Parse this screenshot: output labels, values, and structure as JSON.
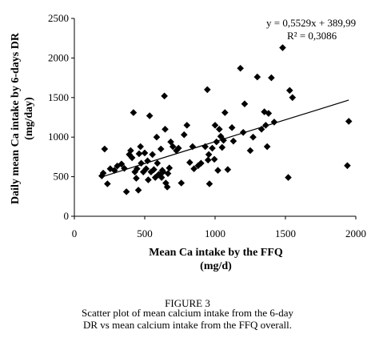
{
  "figure": {
    "label": "FIGURE 3",
    "caption_line1": "Scatter plot of mean calcium intake from the 6-day",
    "caption_line2": "DR vs mean calcium intake from the FFQ overall."
  },
  "chart_data": {
    "type": "scatter",
    "title": "",
    "xlabel": "Mean Ca intake by the FFQ (mg/d)",
    "xlabel_line1": "Mean Ca intake by the FFQ",
    "xlabel_line2": "(mg/d)",
    "ylabel_line1": "Daily mean Ca intake by 6-days DR",
    "ylabel_line2": "(mg/day)",
    "xlim": [
      0,
      2000
    ],
    "ylim": [
      0,
      2500
    ],
    "xticks": [
      0,
      500,
      1000,
      1500,
      2000
    ],
    "yticks": [
      0,
      500,
      1000,
      1500,
      2000,
      2500
    ],
    "grid": false,
    "marker": "diamond",
    "marker_color": "#000000",
    "trendline": {
      "slope": 0.5529,
      "intercept": 389.99,
      "x_range": [
        200,
        1950
      ],
      "equation": "y = 0,5529x + 389,99",
      "r_squared": "R² = 0,3086"
    },
    "points": [
      [
        195,
        510
      ],
      [
        205,
        545
      ],
      [
        215,
        850
      ],
      [
        235,
        410
      ],
      [
        255,
        600
      ],
      [
        285,
        580
      ],
      [
        305,
        635
      ],
      [
        335,
        660
      ],
      [
        355,
        605
      ],
      [
        370,
        310
      ],
      [
        390,
        780
      ],
      [
        400,
        830
      ],
      [
        410,
        740
      ],
      [
        420,
        1310
      ],
      [
        430,
        560
      ],
      [
        440,
        480
      ],
      [
        445,
        600
      ],
      [
        455,
        330
      ],
      [
        460,
        790
      ],
      [
        470,
        880
      ],
      [
        475,
        670
      ],
      [
        490,
        560
      ],
      [
        500,
        800
      ],
      [
        510,
        600
      ],
      [
        520,
        700
      ],
      [
        525,
        460
      ],
      [
        535,
        1270
      ],
      [
        545,
        560
      ],
      [
        555,
        780
      ],
      [
        565,
        590
      ],
      [
        575,
        490
      ],
      [
        585,
        1000
      ],
      [
        590,
        670
      ],
      [
        600,
        530
      ],
      [
        615,
        850
      ],
      [
        620,
        490
      ],
      [
        625,
        580
      ],
      [
        630,
        560
      ],
      [
        640,
        1520
      ],
      [
        645,
        1100
      ],
      [
        650,
        420
      ],
      [
        660,
        370
      ],
      [
        665,
        540
      ],
      [
        675,
        610
      ],
      [
        685,
        940
      ],
      [
        700,
        880
      ],
      [
        725,
        830
      ],
      [
        740,
        860
      ],
      [
        760,
        420
      ],
      [
        780,
        1030
      ],
      [
        800,
        1150
      ],
      [
        820,
        680
      ],
      [
        840,
        880
      ],
      [
        850,
        600
      ],
      [
        880,
        640
      ],
      [
        900,
        670
      ],
      [
        930,
        880
      ],
      [
        945,
        1600
      ],
      [
        950,
        710
      ],
      [
        955,
        780
      ],
      [
        960,
        410
      ],
      [
        980,
        860
      ],
      [
        995,
        720
      ],
      [
        1000,
        1150
      ],
      [
        1010,
        940
      ],
      [
        1020,
        580
      ],
      [
        1030,
        1100
      ],
      [
        1040,
        1010
      ],
      [
        1050,
        870
      ],
      [
        1060,
        960
      ],
      [
        1070,
        1310
      ],
      [
        1090,
        590
      ],
      [
        1120,
        1120
      ],
      [
        1130,
        950
      ],
      [
        1180,
        1870
      ],
      [
        1200,
        1060
      ],
      [
        1210,
        1420
      ],
      [
        1250,
        830
      ],
      [
        1270,
        1000
      ],
      [
        1300,
        1760
      ],
      [
        1330,
        1100
      ],
      [
        1350,
        1320
      ],
      [
        1360,
        1150
      ],
      [
        1370,
        880
      ],
      [
        1380,
        1300
      ],
      [
        1400,
        1750
      ],
      [
        1420,
        1190
      ],
      [
        1480,
        2130
      ],
      [
        1520,
        490
      ],
      [
        1530,
        1590
      ],
      [
        1550,
        1500
      ],
      [
        1950,
        1200
      ],
      [
        1940,
        640
      ]
    ]
  }
}
